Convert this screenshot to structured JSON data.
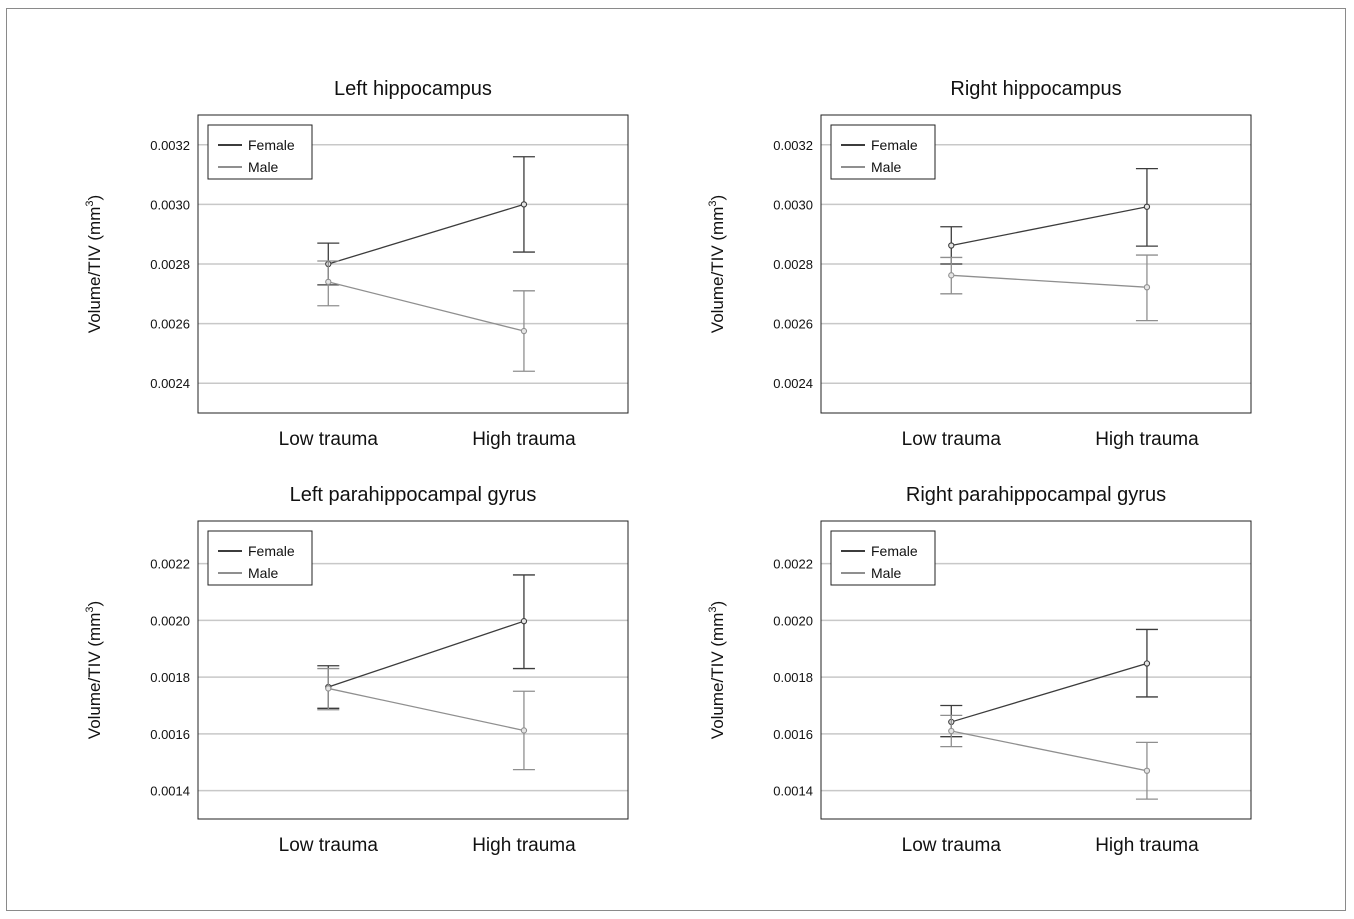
{
  "chart_data": [
    {
      "type": "line",
      "title": "Left hippocampus",
      "ylabel": "Volume/TIV (mm",
      "ylabel_sup": "3",
      "ylabel_close": ")",
      "categories": [
        "Low trauma",
        "High trauma"
      ],
      "ylim": [
        0.0023,
        0.0033
      ],
      "yticks": [
        "0.0024",
        "0.0026",
        "0.0028",
        "0.0030",
        "0.0032"
      ],
      "legend_position": "top-left",
      "series": [
        {
          "name": "Female",
          "color": "#3c3c3c",
          "values": [
            0.0028,
            0.003
          ],
          "err_low": [
            0.00273,
            0.00284
          ],
          "err_high": [
            0.00287,
            0.00316
          ]
        },
        {
          "name": "Male",
          "color": "#8f8f8f",
          "values": [
            0.00274,
            0.002575
          ],
          "err_low": [
            0.00266,
            0.00244
          ],
          "err_high": [
            0.00281,
            0.00271
          ]
        }
      ]
    },
    {
      "type": "line",
      "title": "Right hippocampus",
      "ylabel": "Volume/TIV (mm",
      "ylabel_sup": "3",
      "ylabel_close": ")",
      "categories": [
        "Low trauma",
        "High trauma"
      ],
      "ylim": [
        0.0023,
        0.0033
      ],
      "yticks": [
        "0.0024",
        "0.0026",
        "0.0028",
        "0.0030",
        "0.0032"
      ],
      "legend_position": "top-left",
      "series": [
        {
          "name": "Female",
          "color": "#3c3c3c",
          "values": [
            0.002862,
            0.002992
          ],
          "err_low": [
            0.0028,
            0.00286
          ],
          "err_high": [
            0.002925,
            0.00312
          ]
        },
        {
          "name": "Male",
          "color": "#8f8f8f",
          "values": [
            0.002762,
            0.002722
          ],
          "err_low": [
            0.0027,
            0.00261
          ],
          "err_high": [
            0.002822,
            0.00283
          ]
        }
      ]
    },
    {
      "type": "line",
      "title": "Left parahippocampal gyrus",
      "ylabel": "Volume/TIV (mm",
      "ylabel_sup": "3",
      "ylabel_close": ")",
      "categories": [
        "Low trauma",
        "High trauma"
      ],
      "ylim": [
        0.0013,
        0.00235
      ],
      "yticks": [
        "0.0014",
        "0.0016",
        "0.0018",
        "0.0020",
        "0.0022"
      ],
      "legend_position": "top-left",
      "series": [
        {
          "name": "Female",
          "color": "#3c3c3c",
          "values": [
            0.001765,
            0.001997
          ],
          "err_low": [
            0.00169,
            0.00183
          ],
          "err_high": [
            0.00184,
            0.00216
          ]
        },
        {
          "name": "Male",
          "color": "#8f8f8f",
          "values": [
            0.00176,
            0.001612
          ],
          "err_low": [
            0.001685,
            0.001474
          ],
          "err_high": [
            0.00183,
            0.00175
          ]
        }
      ]
    },
    {
      "type": "line",
      "title": "Right parahippocampal gyrus",
      "ylabel": "Volume/TIV (mm",
      "ylabel_sup": "3",
      "ylabel_close": ")",
      "categories": [
        "Low trauma",
        "High trauma"
      ],
      "ylim": [
        0.0013,
        0.00235
      ],
      "yticks": [
        "0.0014",
        "0.0016",
        "0.0018",
        "0.0020",
        "0.0022"
      ],
      "legend_position": "top-left",
      "series": [
        {
          "name": "Female",
          "color": "#3c3c3c",
          "values": [
            0.001642,
            0.001848
          ],
          "err_low": [
            0.00159,
            0.00173
          ],
          "err_high": [
            0.0017,
            0.001968
          ]
        },
        {
          "name": "Male",
          "color": "#8f8f8f",
          "values": [
            0.00161,
            0.00147
          ],
          "err_low": [
            0.001555,
            0.00137
          ],
          "err_high": [
            0.001665,
            0.00157
          ]
        }
      ]
    }
  ]
}
